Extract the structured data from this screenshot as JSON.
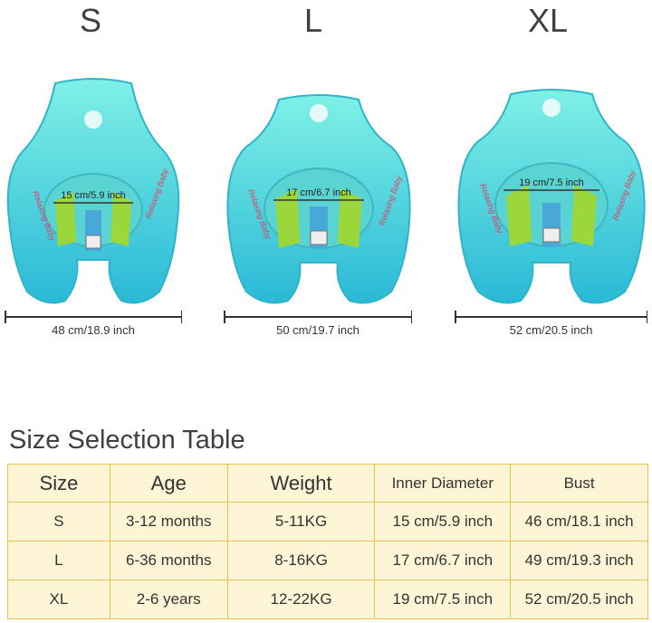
{
  "products": [
    {
      "size": "S",
      "inner": "15 cm/5.9 inch",
      "width": "48 cm/18.9 inch",
      "brand": "Relaxing Baby"
    },
    {
      "size": "L",
      "inner": "17 cm/6.7 inch",
      "width": "50 cm/19.7 inch",
      "brand": "Relaxing Baby"
    },
    {
      "size": "XL",
      "inner": "19 cm/7.5 inch",
      "width": "52 cm/20.5 inch",
      "brand": "Relaxing Baby"
    }
  ],
  "table": {
    "title": "Size Selection Table",
    "headers": [
      "Size",
      "Age",
      "Weight",
      "Inner Diameter",
      "Bust"
    ],
    "rows": [
      [
        "S",
        "3-12 months",
        "5-11KG",
        "15 cm/5.9 inch",
        "46 cm/18.1 inch"
      ],
      [
        "L",
        "6-36 months",
        "8-16KG",
        "17 cm/6.7 inch",
        "49 cm/19.3 inch"
      ],
      [
        "XL",
        "2-6 years",
        "12-22KG",
        "19 cm/7.5 inch",
        "52 cm/20.5 inch"
      ]
    ]
  },
  "colors": {
    "float_body": "#3fd6d0",
    "float_highlight": "#7ff0e6",
    "seat": "#9bd63a",
    "table_fill": "#fdf5d6",
    "table_border": "#e8c24a"
  }
}
